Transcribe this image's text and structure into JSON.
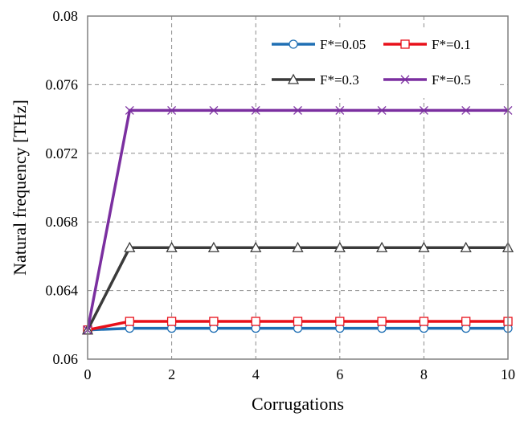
{
  "chart_data": {
    "type": "line",
    "title": "",
    "xlabel": "Corrugations",
    "ylabel": "Natural frequency [THz]",
    "xlim": [
      0,
      10
    ],
    "ylim": [
      0.06,
      0.08
    ],
    "x_ticks": [
      0,
      2,
      4,
      6,
      8,
      10
    ],
    "x_tick_labels": [
      "0",
      "2",
      "4",
      "6",
      "8",
      "10"
    ],
    "y_ticks": [
      0.06,
      0.064,
      0.068,
      0.072,
      0.076,
      0.08
    ],
    "y_tick_labels": [
      "0.06",
      "0.064",
      "0.068",
      "0.072",
      "0.076",
      "0.08"
    ],
    "grid": true,
    "legend_position": "top-right",
    "x": [
      0,
      1,
      2,
      3,
      4,
      5,
      6,
      7,
      8,
      9,
      10
    ],
    "series": [
      {
        "name": "F*=0.05",
        "color": "#1f6fb4",
        "marker": "circle",
        "values": [
          0.0617,
          0.0618,
          0.0618,
          0.0618,
          0.0618,
          0.0618,
          0.0618,
          0.0618,
          0.0618,
          0.0618,
          0.0618
        ]
      },
      {
        "name": "F*=0.1",
        "color": "#e8101a",
        "marker": "square",
        "values": [
          0.0617,
          0.0622,
          0.0622,
          0.0622,
          0.0622,
          0.0622,
          0.0622,
          0.0622,
          0.0622,
          0.0622,
          0.0622
        ]
      },
      {
        "name": "F*=0.3",
        "color": "#3a3a3a",
        "marker": "triangle",
        "values": [
          0.0617,
          0.0665,
          0.0665,
          0.0665,
          0.0665,
          0.0665,
          0.0665,
          0.0665,
          0.0665,
          0.0665,
          0.0665
        ]
      },
      {
        "name": "F*=0.5",
        "color": "#7b2fa0",
        "marker": "x",
        "values": [
          0.0617,
          0.0745,
          0.0745,
          0.0745,
          0.0745,
          0.0745,
          0.0745,
          0.0745,
          0.0745,
          0.0745,
          0.0745
        ]
      }
    ]
  }
}
